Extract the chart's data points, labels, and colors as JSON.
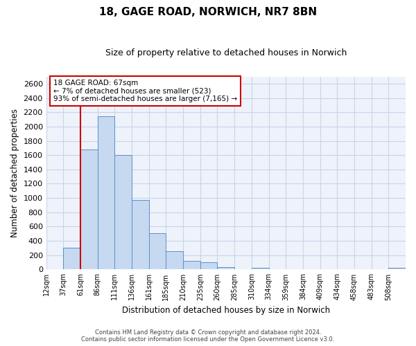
{
  "title": "18, GAGE ROAD, NORWICH, NR7 8BN",
  "subtitle": "Size of property relative to detached houses in Norwich",
  "xlabel": "Distribution of detached houses by size in Norwich",
  "ylabel": "Number of detached properties",
  "bin_labels": [
    "12sqm",
    "37sqm",
    "61sqm",
    "86sqm",
    "111sqm",
    "136sqm",
    "161sqm",
    "185sqm",
    "210sqm",
    "235sqm",
    "260sqm",
    "285sqm",
    "310sqm",
    "334sqm",
    "359sqm",
    "384sqm",
    "409sqm",
    "434sqm",
    "458sqm",
    "483sqm",
    "508sqm"
  ],
  "bar_values": [
    0,
    300,
    1680,
    2140,
    1600,
    970,
    510,
    255,
    125,
    100,
    30,
    0,
    20,
    0,
    5,
    5,
    0,
    0,
    0,
    0,
    20
  ],
  "bar_color": "#c6d9f0",
  "bar_edge_color": "#5b8fc9",
  "property_line_x": 2,
  "property_line_color": "#cc0000",
  "ylim": [
    0,
    2700
  ],
  "yticks": [
    0,
    200,
    400,
    600,
    800,
    1000,
    1200,
    1400,
    1600,
    1800,
    2000,
    2200,
    2400,
    2600
  ],
  "annotation_title": "18 GAGE ROAD: 67sqm",
  "annotation_line1": "← 7% of detached houses are smaller (523)",
  "annotation_line2": "93% of semi-detached houses are larger (7,165) →",
  "annotation_box_color": "#cc0000",
  "footer_line1": "Contains HM Land Registry data © Crown copyright and database right 2024.",
  "footer_line2": "Contains public sector information licensed under the Open Government Licence v3.0.",
  "grid_color": "#c8d4e8",
  "background_color": "#eef2fa"
}
